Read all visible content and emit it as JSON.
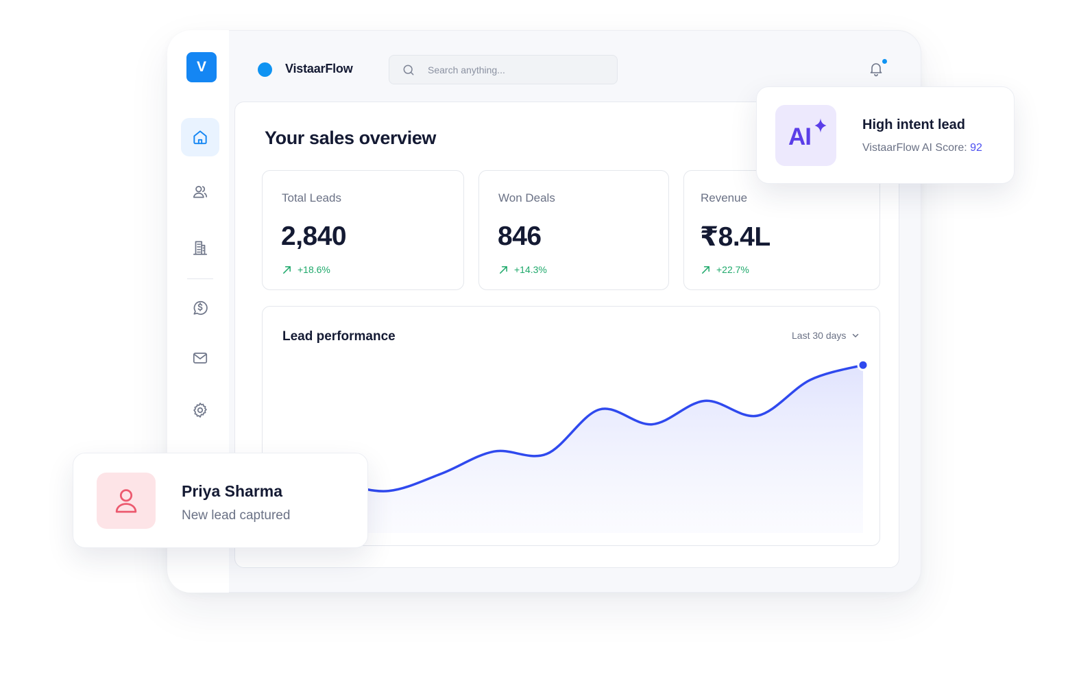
{
  "app": {
    "logo_letter": "V",
    "brand_name": "VistaarFlow",
    "brand_color": "#1486f3"
  },
  "sidebar": {
    "items": [
      {
        "name": "home",
        "icon": "home-icon",
        "active": true
      },
      {
        "name": "contacts",
        "icon": "users-icon",
        "active": false
      },
      {
        "name": "companies",
        "icon": "building-icon",
        "active": false
      },
      {
        "name": "deals",
        "icon": "dollar-circle-icon",
        "active": false
      },
      {
        "name": "mail",
        "icon": "mail-icon",
        "active": false
      },
      {
        "name": "settings",
        "icon": "gear-icon",
        "active": false
      }
    ]
  },
  "header": {
    "search_placeholder": "Search anything...",
    "search_value": "",
    "notification_icon": "bell-icon"
  },
  "main": {
    "title": "Your sales overview"
  },
  "stats": [
    {
      "label": "Total Leads",
      "value": "2,840",
      "trend": "+18.6%"
    },
    {
      "label": "Won Deals",
      "value": "846",
      "trend": "+14.3%"
    },
    {
      "label": "Revenue",
      "value": "₹8.4L",
      "trend": "+22.7%"
    }
  ],
  "chart": {
    "title": "Lead performance",
    "range": "Last 30 days",
    "chart_data": {
      "type": "area",
      "x": [
        0,
        1,
        2,
        3,
        4,
        5,
        6,
        7,
        8,
        9,
        10,
        11
      ],
      "values": [
        32,
        39,
        34,
        48,
        66,
        64,
        100,
        88,
        107,
        95,
        124,
        136
      ],
      "title": "Lead performance",
      "xlabel": "",
      "ylabel": "",
      "ylim": [
        0,
        150
      ],
      "grid": false,
      "color": "#2f49ee",
      "fill_color": "#e3e6fd"
    }
  },
  "ai_card": {
    "badge": "AI",
    "title": "High intent lead",
    "score_label": "VistaarFlow AI Score:",
    "score_value": "92"
  },
  "lead_card": {
    "name": "Priya Sharma",
    "subtitle": "New lead captured",
    "avatar_icon": "user-icon"
  },
  "colors": {
    "positive": "#1fa96b",
    "accent": "#0f93f2",
    "ai_purple": "#5b3ee8"
  }
}
